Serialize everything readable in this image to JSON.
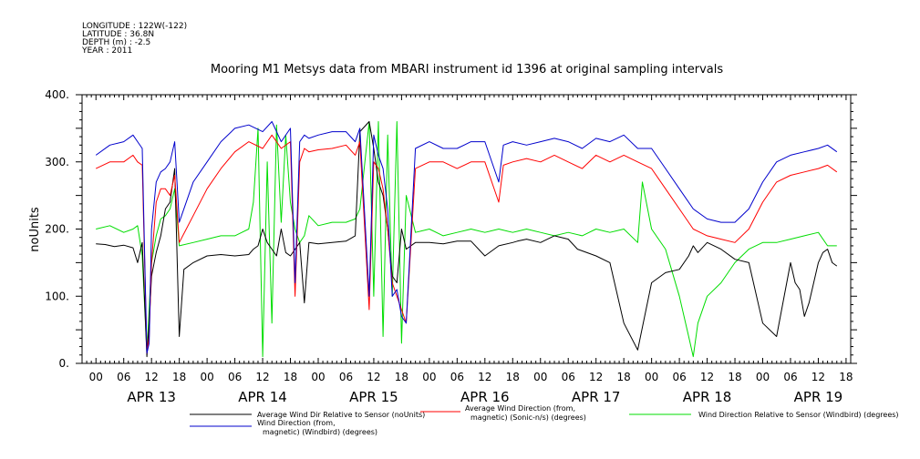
{
  "header": {
    "meta": [
      "LONGITUDE : 122W(-122)",
      "LATITUDE : 36.8N",
      "DEPTH (m) : -2.5",
      "YEAR : 2011"
    ],
    "title": "Mooring M1 Metsys data from MBARI instrument id 1396 at original sampling intervals"
  },
  "chart_data": {
    "type": "line",
    "title": "Mooring M1 Metsys data from MBARI instrument id 1396 at original sampling intervals",
    "ylabel": "noUnits",
    "xlabel": "",
    "ylim": [
      0,
      400
    ],
    "yticks": [
      "0.",
      "100.",
      "200.",
      "300.",
      "400."
    ],
    "xlim_hours": [
      -3,
      163
    ],
    "xtick_hour_labels": [
      "00",
      "06",
      "12",
      "18",
      "00",
      "06",
      "12",
      "18",
      "00",
      "06",
      "12",
      "18",
      "00",
      "06",
      "12",
      "18",
      "00",
      "06",
      "12",
      "18",
      "00",
      "06",
      "12",
      "18",
      "00",
      "06",
      "12",
      "18"
    ],
    "date_labels": [
      "APR 13",
      "APR 14",
      "APR 15",
      "APR 16",
      "APR 17",
      "APR 18",
      "APR 19"
    ],
    "grid": false,
    "legend_position": "bottom",
    "x_unit": "hours since 00 APR 13 2011",
    "series": [
      {
        "name": "Average Wind Dir Relative to Sensor (noUnits)",
        "color": "#000000",
        "x": [
          0,
          2,
          4,
          6,
          8,
          9,
          10,
          11,
          11.5,
          12,
          13,
          14,
          15,
          16,
          17,
          18,
          19,
          21,
          24,
          27,
          30,
          33,
          34,
          35,
          36,
          37,
          38,
          39,
          40,
          41,
          42,
          43,
          44,
          45,
          46,
          48,
          51,
          54,
          56,
          57,
          59,
          60,
          61,
          62,
          63,
          64,
          65,
          66,
          67,
          69,
          72,
          75,
          78,
          81,
          84,
          87,
          90,
          91,
          93,
          96,
          99,
          102,
          104,
          108,
          111,
          112,
          114,
          117,
          120,
          123,
          126,
          128,
          129,
          130,
          132,
          135,
          138,
          141,
          144,
          147,
          150,
          151,
          152,
          153,
          154,
          155,
          156,
          157,
          158,
          159,
          160
        ],
        "y": [
          178,
          177,
          174,
          176,
          172,
          150,
          180,
          10,
          60,
          130,
          165,
          190,
          230,
          240,
          290,
          40,
          140,
          150,
          160,
          162,
          160,
          162,
          170,
          175,
          200,
          180,
          170,
          160,
          200,
          165,
          160,
          170,
          180,
          90,
          180,
          178,
          180,
          182,
          190,
          345,
          360,
          320,
          270,
          250,
          200,
          130,
          120,
          200,
          170,
          180,
          180,
          178,
          182,
          182,
          160,
          175,
          180,
          182,
          185,
          180,
          190,
          185,
          170,
          160,
          150,
          120,
          60,
          20,
          120,
          135,
          140,
          160,
          175,
          165,
          180,
          170,
          155,
          150,
          60,
          40,
          150,
          120,
          110,
          70,
          90,
          120,
          150,
          165,
          170,
          150,
          145
        ]
      },
      {
        "name": "Average Wind Direction (from, magnetic) (Sonic-n/s) (degrees)",
        "color": "#ff0000",
        "x": [
          0,
          3,
          6,
          8,
          9,
          10,
          11,
          11.5,
          12,
          13,
          14,
          15,
          16,
          17,
          18,
          21,
          24,
          27,
          30,
          33,
          36,
          38,
          40,
          42,
          43,
          44,
          45,
          46,
          48,
          51,
          54,
          56,
          57,
          59,
          60,
          61,
          62,
          63,
          64,
          65,
          66,
          67,
          69,
          72,
          75,
          78,
          81,
          84,
          87,
          88,
          90,
          93,
          96,
          99,
          102,
          105,
          108,
          111,
          114,
          117,
          120,
          123,
          126,
          129,
          132,
          135,
          138,
          141,
          144,
          147,
          150,
          153,
          156,
          158,
          160
        ],
        "y": [
          290,
          300,
          300,
          310,
          300,
          295,
          15,
          40,
          150,
          240,
          260,
          260,
          250,
          280,
          180,
          220,
          260,
          290,
          315,
          330,
          320,
          340,
          320,
          330,
          100,
          300,
          320,
          315,
          318,
          320,
          325,
          310,
          330,
          80,
          300,
          290,
          260,
          200,
          120,
          100,
          80,
          60,
          290,
          300,
          300,
          290,
          300,
          300,
          240,
          295,
          300,
          305,
          300,
          310,
          300,
          290,
          310,
          300,
          310,
          300,
          290,
          260,
          230,
          200,
          190,
          185,
          180,
          200,
          240,
          270,
          280,
          285,
          290,
          295,
          285
        ]
      },
      {
        "name": "Wind Direction Relative to Sensor (Windbird) (degrees)",
        "color": "#00dd00",
        "x": [
          0,
          3,
          6,
          8,
          9,
          10,
          11,
          12,
          13,
          14,
          15,
          16,
          17,
          18,
          21,
          24,
          27,
          30,
          33,
          34,
          35,
          36,
          37,
          38,
          39,
          40,
          41,
          42,
          43,
          44,
          45,
          46,
          48,
          51,
          54,
          56,
          57,
          59,
          60,
          61,
          62,
          63,
          64,
          65,
          66,
          67,
          69,
          72,
          75,
          78,
          81,
          84,
          87,
          90,
          93,
          96,
          99,
          102,
          105,
          108,
          111,
          114,
          117,
          118,
          120,
          123,
          126,
          128,
          129,
          130,
          132,
          135,
          138,
          141,
          144,
          147,
          150,
          153,
          156,
          158,
          160
        ],
        "y": [
          200,
          205,
          195,
          200,
          205,
          160,
          15,
          150,
          190,
          215,
          220,
          230,
          260,
          175,
          180,
          185,
          190,
          190,
          200,
          240,
          350,
          10,
          300,
          60,
          355,
          210,
          340,
          240,
          200,
          180,
          190,
          220,
          205,
          210,
          210,
          215,
          230,
          360,
          100,
          360,
          40,
          340,
          100,
          360,
          30,
          250,
          195,
          200,
          190,
          195,
          200,
          195,
          200,
          195,
          200,
          195,
          190,
          195,
          190,
          200,
          195,
          200,
          180,
          270,
          200,
          170,
          100,
          40,
          10,
          60,
          100,
          120,
          150,
          170,
          180,
          180,
          185,
          190,
          195,
          175,
          175
        ]
      },
      {
        "name": "Wind Direction (from, magnetic) (Windbird) (degrees)",
        "color": "#0000cc",
        "x": [
          0,
          3,
          6,
          8,
          9,
          10,
          11,
          11.5,
          12,
          13,
          14,
          15,
          16,
          17,
          18,
          21,
          24,
          27,
          30,
          33,
          36,
          38,
          40,
          42,
          43,
          44,
          45,
          46,
          48,
          51,
          54,
          56,
          57,
          59,
          60,
          61,
          62,
          63,
          64,
          65,
          66,
          67,
          69,
          72,
          75,
          78,
          81,
          84,
          87,
          88,
          90,
          93,
          96,
          99,
          102,
          105,
          108,
          111,
          114,
          117,
          120,
          123,
          126,
          129,
          132,
          135,
          138,
          141,
          144,
          147,
          150,
          153,
          156,
          158,
          160
        ],
        "y": [
          310,
          325,
          330,
          340,
          330,
          320,
          15,
          30,
          200,
          270,
          285,
          290,
          300,
          330,
          210,
          270,
          300,
          330,
          350,
          355,
          345,
          360,
          330,
          350,
          120,
          330,
          340,
          335,
          340,
          345,
          345,
          330,
          350,
          100,
          340,
          310,
          290,
          230,
          100,
          110,
          70,
          60,
          320,
          330,
          320,
          320,
          330,
          330,
          270,
          325,
          330,
          325,
          330,
          335,
          330,
          320,
          335,
          330,
          340,
          320,
          320,
          290,
          260,
          230,
          215,
          210,
          210,
          230,
          270,
          300,
          310,
          315,
          320,
          325,
          315
        ]
      }
    ]
  },
  "legend": [
    {
      "line1": "Average Wind Dir Relative to Sensor (noUnits)",
      "line2": "",
      "color": "#000000"
    },
    {
      "line1": "Average Wind Direction (from,",
      "line2": "magnetic) (Sonic-n/s) (degrees)",
      "color": "#ff0000"
    },
    {
      "line1": "Wind Direction Relative to Sensor (Windbird) (degrees)",
      "line2": "",
      "color": "#00dd00"
    },
    {
      "line1": "Wind Direction (from,",
      "line2": "magnetic) (Windbird) (degrees)",
      "color": "#0000cc"
    }
  ]
}
